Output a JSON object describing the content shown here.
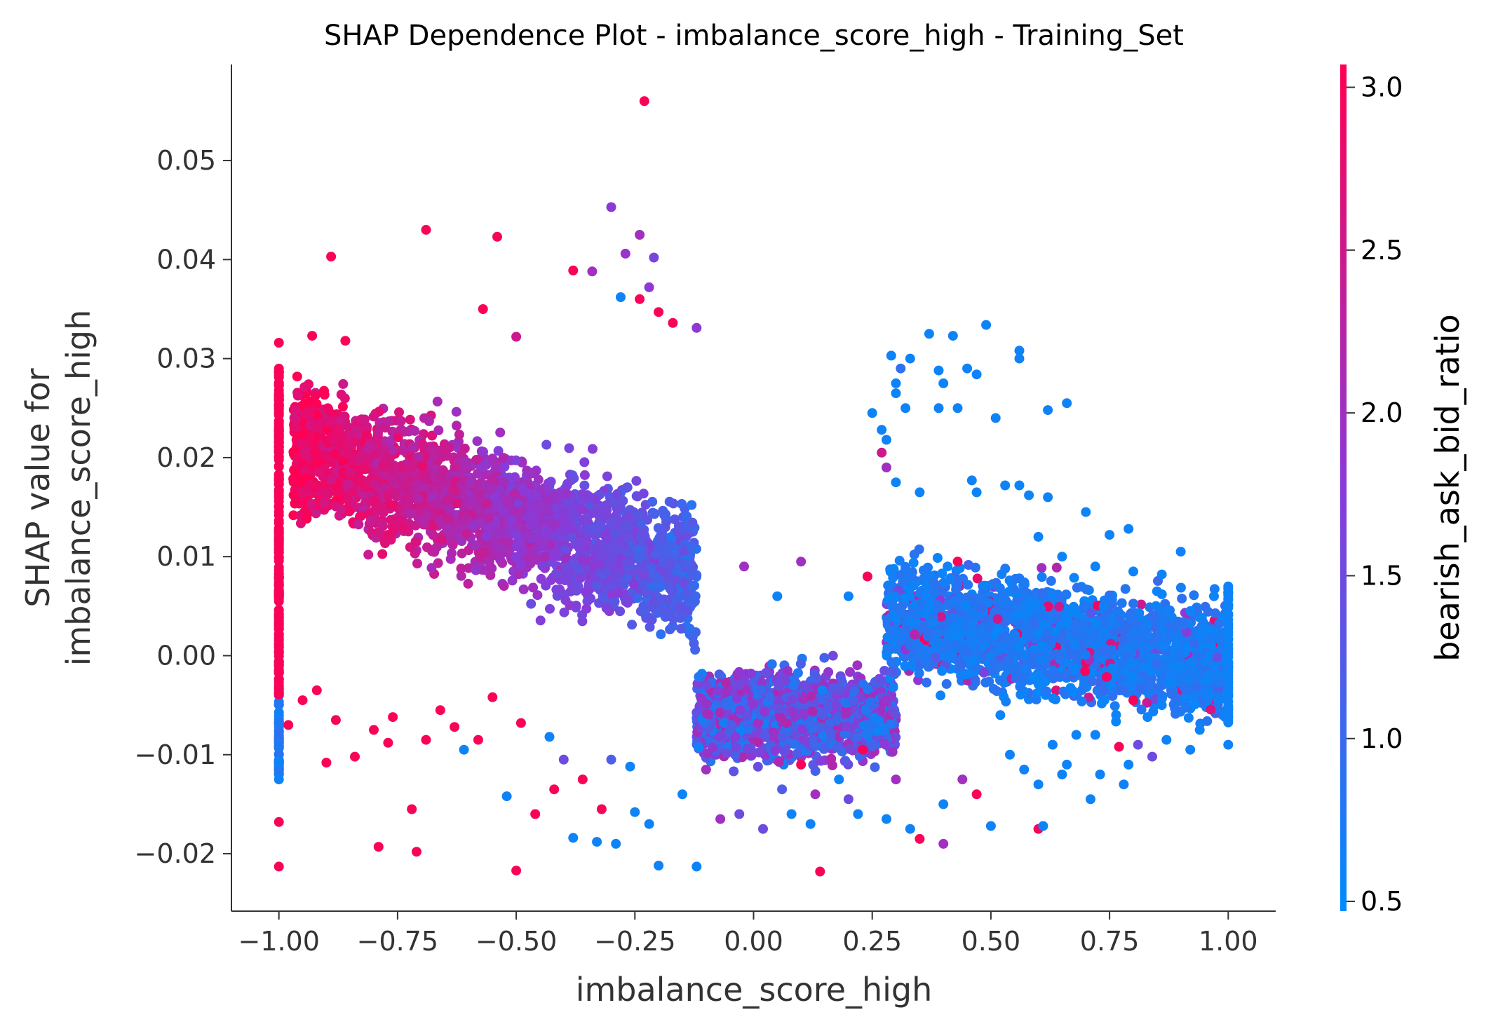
{
  "chart_data": {
    "type": "scatter",
    "title": "SHAP Dependence Plot - imbalance_score_high - Training_Set",
    "xlabel": "imbalance_score_high",
    "ylabel": [
      "SHAP value for",
      "imbalance_score_high"
    ],
    "xlim": [
      -1.1,
      1.1
    ],
    "ylim": [
      -0.0258,
      0.0597
    ],
    "x_ticks": [
      {
        "value": -1.0,
        "label": "−1.00"
      },
      {
        "value": -0.75,
        "label": "−0.75"
      },
      {
        "value": -0.5,
        "label": "−0.50"
      },
      {
        "value": -0.25,
        "label": "−0.25"
      },
      {
        "value": 0.0,
        "label": "0.00"
      },
      {
        "value": 0.25,
        "label": "0.25"
      },
      {
        "value": 0.5,
        "label": "0.50"
      },
      {
        "value": 0.75,
        "label": "0.75"
      },
      {
        "value": 1.0,
        "label": "1.00"
      }
    ],
    "y_ticks": [
      {
        "value": -0.02,
        "label": "−0.02"
      },
      {
        "value": -0.01,
        "label": "−0.01"
      },
      {
        "value": 0.0,
        "label": "0.00"
      },
      {
        "value": 0.01,
        "label": "0.01"
      },
      {
        "value": 0.02,
        "label": "0.02"
      },
      {
        "value": 0.03,
        "label": "0.03"
      },
      {
        "value": 0.04,
        "label": "0.04"
      },
      {
        "value": 0.05,
        "label": "0.05"
      }
    ],
    "grid": false,
    "colorbar": {
      "label": "bearish_ask_bid_ratio",
      "range": [
        0.47,
        3.07
      ],
      "ticks": [
        {
          "value": 0.5,
          "label": "0.5"
        },
        {
          "value": 1.0,
          "label": "1.0"
        },
        {
          "value": 1.5,
          "label": "1.5"
        },
        {
          "value": 2.0,
          "label": "2.0"
        },
        {
          "value": 2.5,
          "label": "2.5"
        },
        {
          "value": 3.0,
          "label": "3.0"
        }
      ],
      "colormap": [
        "#008bfb",
        "#ff0052"
      ]
    },
    "points": [
      [
        -0.23,
        0.056,
        3.0
      ],
      [
        -0.3,
        0.0453,
        1.8
      ],
      [
        -0.24,
        0.0425,
        2.0
      ],
      [
        -0.69,
        0.043,
        3.0
      ],
      [
        -0.54,
        0.0423,
        3.0
      ],
      [
        -0.89,
        0.0403,
        3.0
      ],
      [
        -0.21,
        0.0402,
        1.6
      ],
      [
        -0.22,
        0.0372,
        1.8
      ],
      [
        -0.27,
        0.0406,
        1.9
      ],
      [
        -0.38,
        0.0389,
        3.0
      ],
      [
        -0.34,
        0.0388,
        2.0
      ],
      [
        -0.57,
        0.035,
        3.0
      ],
      [
        -0.93,
        0.0323,
        3.0
      ],
      [
        -1.0,
        0.0316,
        3.0
      ],
      [
        -0.86,
        0.0318,
        3.0
      ],
      [
        -0.5,
        0.0322,
        2.5
      ],
      [
        -0.12,
        0.0331,
        1.8
      ],
      [
        -0.17,
        0.0336,
        3.0
      ],
      [
        -0.28,
        0.0362,
        0.6
      ],
      [
        -0.24,
        0.036,
        3.0
      ],
      [
        -0.2,
        0.0347,
        3.0
      ],
      [
        0.49,
        0.0334,
        0.6
      ],
      [
        0.37,
        0.0325,
        0.6
      ],
      [
        0.42,
        0.0323,
        0.6
      ],
      [
        0.56,
        0.0308,
        0.6
      ],
      [
        0.56,
        0.03,
        0.6
      ],
      [
        0.29,
        0.0303,
        0.6
      ],
      [
        0.33,
        0.03,
        0.6
      ],
      [
        0.39,
        0.0288,
        0.6
      ],
      [
        0.45,
        0.029,
        0.6
      ],
      [
        0.47,
        0.0284,
        0.6
      ],
      [
        0.31,
        0.029,
        0.9
      ],
      [
        0.3,
        0.0275,
        0.6
      ],
      [
        0.4,
        0.0275,
        0.6
      ],
      [
        0.3,
        0.0265,
        0.6
      ],
      [
        0.43,
        0.025,
        0.6
      ],
      [
        0.39,
        0.025,
        0.6
      ],
      [
        0.32,
        0.025,
        0.6
      ],
      [
        0.25,
        0.0245,
        0.6
      ],
      [
        0.51,
        0.024,
        0.6
      ],
      [
        0.66,
        0.0255,
        0.6
      ],
      [
        0.62,
        0.0248,
        0.6
      ],
      [
        0.27,
        0.0228,
        0.6
      ],
      [
        0.28,
        0.0218,
        0.6
      ],
      [
        0.27,
        0.0205,
        2.5
      ],
      [
        0.28,
        0.019,
        2.0
      ],
      [
        0.3,
        0.0175,
        0.6
      ],
      [
        0.46,
        0.0177,
        0.6
      ],
      [
        0.53,
        0.0172,
        0.6
      ],
      [
        0.56,
        0.0172,
        0.6
      ],
      [
        0.58,
        0.0162,
        0.6
      ],
      [
        0.47,
        0.0165,
        0.6
      ],
      [
        0.35,
        0.0165,
        0.6
      ],
      [
        0.62,
        0.016,
        0.6
      ],
      [
        0.7,
        0.0145,
        0.6
      ],
      [
        0.79,
        0.0128,
        0.6
      ],
      [
        0.75,
        0.0122,
        0.6
      ],
      [
        0.9,
        0.0105,
        0.6
      ],
      [
        0.86,
        0.0082,
        0.6
      ],
      [
        0.97,
        0.006,
        0.6
      ],
      [
        1.0,
        0.007,
        0.6
      ],
      [
        1.0,
        0.005,
        0.6
      ],
      [
        1.0,
        0.003,
        0.6
      ],
      [
        1.0,
        -0.002,
        0.6
      ],
      [
        1.0,
        -0.006,
        0.6
      ],
      [
        1.0,
        -0.009,
        0.6
      ],
      [
        0.96,
        0.0025,
        0.6
      ],
      [
        0.9,
        -0.001,
        0.6
      ],
      [
        0.86,
        -0.005,
        0.6
      ],
      [
        0.81,
        -0.009,
        1.5
      ],
      [
        0.84,
        -0.0102,
        1.5
      ],
      [
        0.79,
        -0.011,
        0.6
      ],
      [
        0.78,
        -0.013,
        0.6
      ],
      [
        0.73,
        -0.012,
        0.6
      ],
      [
        0.71,
        -0.0145,
        0.6
      ],
      [
        0.65,
        -0.012,
        0.6
      ],
      [
        0.6,
        -0.0175,
        3.0
      ],
      [
        0.61,
        -0.0172,
        0.6
      ],
      [
        0.5,
        -0.0172,
        0.6
      ],
      [
        0.4,
        -0.019,
        2.0
      ],
      [
        0.35,
        -0.0185,
        3.0
      ],
      [
        0.33,
        -0.0175,
        0.6
      ],
      [
        0.28,
        -0.0165,
        0.6
      ],
      [
        0.22,
        -0.016,
        0.6
      ],
      [
        0.14,
        -0.0218,
        3.0
      ],
      [
        0.12,
        -0.017,
        0.6
      ],
      [
        0.08,
        -0.016,
        0.6
      ],
      [
        0.02,
        -0.0175,
        1.5
      ],
      [
        -0.03,
        -0.016,
        1.5
      ],
      [
        -0.07,
        -0.0165,
        2.0
      ],
      [
        -0.12,
        -0.0213,
        0.6
      ],
      [
        -0.2,
        -0.0212,
        0.6
      ],
      [
        -0.29,
        -0.019,
        0.6
      ],
      [
        -0.33,
        -0.0188,
        0.6
      ],
      [
        -0.38,
        -0.0184,
        0.6
      ],
      [
        -0.5,
        -0.0217,
        3.0
      ],
      [
        -0.71,
        -0.0198,
        3.0
      ],
      [
        -0.79,
        -0.0193,
        3.0
      ],
      [
        -1.0,
        -0.0213,
        3.0
      ],
      [
        -1.0,
        -0.0168,
        3.0
      ],
      [
        -1.0,
        -0.0125,
        0.6
      ],
      [
        -1.0,
        -0.0108,
        0.6
      ],
      [
        -0.9,
        -0.0108,
        3.0
      ],
      [
        -0.84,
        -0.0102,
        3.0
      ],
      [
        -0.77,
        -0.0088,
        3.0
      ],
      [
        -0.72,
        -0.0155,
        3.0
      ],
      [
        -0.69,
        -0.0085,
        3.0
      ],
      [
        -0.61,
        -0.0095,
        0.6
      ],
      [
        -0.58,
        -0.0085,
        3.0
      ],
      [
        -0.52,
        -0.0142,
        0.6
      ],
      [
        -0.46,
        -0.016,
        3.0
      ],
      [
        -0.42,
        -0.0135,
        3.0
      ],
      [
        -0.36,
        -0.0125,
        3.0
      ],
      [
        -0.32,
        -0.0155,
        3.0
      ],
      [
        -0.25,
        -0.0158,
        0.6
      ],
      [
        -0.22,
        -0.017,
        0.6
      ],
      [
        -0.15,
        -0.014,
        0.6
      ],
      [
        0.06,
        -0.0135,
        1.2
      ],
      [
        0.1,
        -0.011,
        3.0
      ],
      [
        0.18,
        -0.0125,
        0.6
      ],
      [
        0.23,
        -0.0095,
        3.0
      ],
      [
        0.3,
        -0.0125,
        2.0
      ],
      [
        0.44,
        -0.0125,
        2.0
      ],
      [
        0.54,
        -0.01,
        0.6
      ],
      [
        0.57,
        -0.0115,
        0.6
      ],
      [
        0.63,
        -0.009,
        0.6
      ],
      [
        0.68,
        -0.008,
        0.6
      ],
      [
        0.77,
        -0.0092,
        3.0
      ],
      [
        0.87,
        -0.0085,
        0.6
      ],
      [
        0.92,
        -0.0095,
        0.6
      ],
      [
        0.94,
        -0.0075,
        0.6
      ],
      [
        0.98,
        -0.0045,
        0.6
      ],
      [
        -0.98,
        -0.007,
        3.0
      ],
      [
        -0.95,
        -0.0045,
        3.0
      ],
      [
        -0.92,
        -0.0035,
        3.0
      ],
      [
        -0.88,
        -0.0065,
        3.0
      ],
      [
        -0.8,
        -0.0075,
        3.0
      ],
      [
        -0.76,
        -0.0062,
        3.0
      ],
      [
        -0.66,
        -0.0055,
        3.0
      ],
      [
        -0.63,
        -0.0072,
        3.0
      ],
      [
        -0.55,
        -0.0042,
        3.0
      ],
      [
        -0.49,
        -0.0068,
        3.0
      ],
      [
        -0.43,
        -0.0082,
        0.6
      ],
      [
        -0.4,
        -0.0105,
        1.5
      ],
      [
        -0.3,
        -0.0105,
        1.2
      ],
      [
        -0.26,
        -0.0112,
        0.6
      ],
      [
        -0.1,
        -0.0115,
        2.0
      ],
      [
        0.13,
        -0.014,
        2.0
      ],
      [
        0.2,
        -0.0145,
        1.5
      ],
      [
        0.4,
        -0.015,
        0.6
      ],
      [
        0.47,
        -0.014,
        3.0
      ],
      [
        0.52,
        -0.006,
        0.6
      ],
      [
        0.6,
        -0.013,
        0.6
      ],
      [
        0.66,
        -0.011,
        0.6
      ],
      [
        0.72,
        -0.008,
        0.6
      ],
      [
        0.83,
        -0.0062,
        0.6
      ],
      [
        0.8,
        -0.0045,
        3.0
      ],
      [
        0.88,
        -0.0028,
        0.6
      ],
      [
        0.95,
        -0.0025,
        0.6
      ],
      [
        -0.02,
        0.009,
        2.0
      ],
      [
        0.05,
        0.006,
        0.6
      ],
      [
        0.1,
        0.0095,
        2.0
      ],
      [
        0.2,
        0.006,
        0.6
      ],
      [
        0.24,
        0.008,
        3.0
      ],
      [
        0.43,
        0.0095,
        3.0
      ],
      [
        0.6,
        0.012,
        0.6
      ],
      [
        0.65,
        0.01,
        0.6
      ],
      [
        0.72,
        0.009,
        0.6
      ],
      [
        0.8,
        0.0085,
        0.6
      ],
      [
        0.85,
        0.0065,
        0.6
      ],
      [
        0.92,
        0.0045,
        0.6
      ]
    ]
  }
}
